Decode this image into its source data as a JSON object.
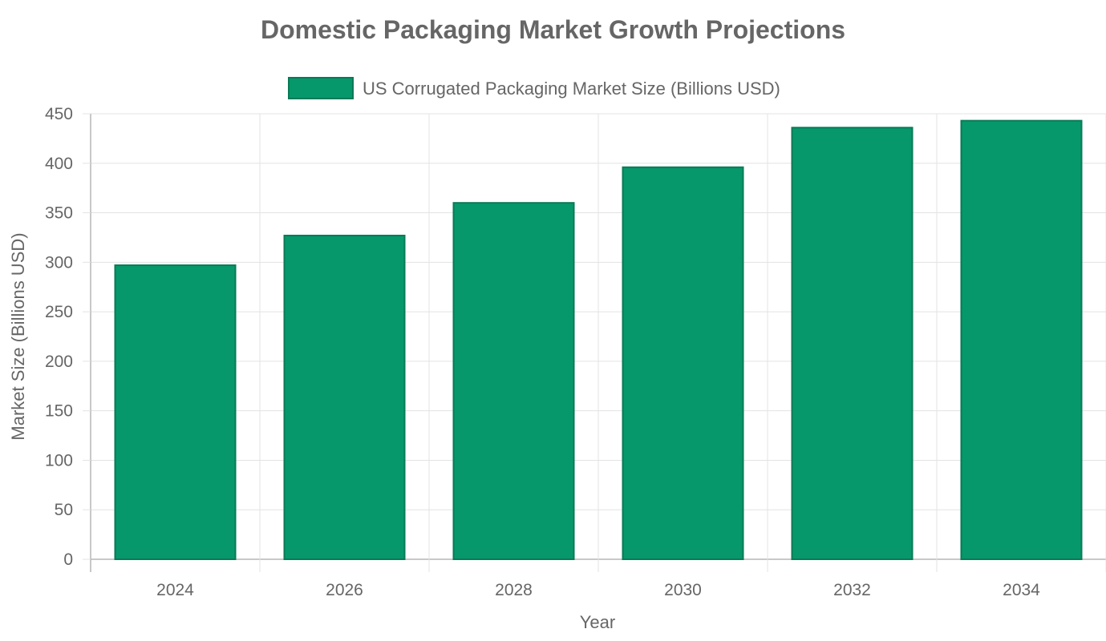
{
  "chart_data": {
    "type": "bar",
    "title": "Domestic Packaging Market Growth Projections",
    "xlabel": "Year",
    "ylabel": "Market Size (Billions USD)",
    "categories": [
      "2024",
      "2026",
      "2028",
      "2030",
      "2032",
      "2034"
    ],
    "series": [
      {
        "name": "US Corrugated Packaging Market Size (Billions USD)",
        "values": [
          297,
          327,
          360,
          396,
          436,
          443
        ]
      }
    ],
    "ylim": [
      0,
      450
    ],
    "yticks": [
      0,
      50,
      100,
      150,
      200,
      250,
      300,
      350,
      400,
      450
    ],
    "grid": true,
    "legend_position": "top",
    "colors": {
      "bar_fill": "#06986a",
      "bar_border": "#0a7a57",
      "grid": "#e3e3e3",
      "axis": "#b5b5b5",
      "text": "#666666"
    }
  }
}
